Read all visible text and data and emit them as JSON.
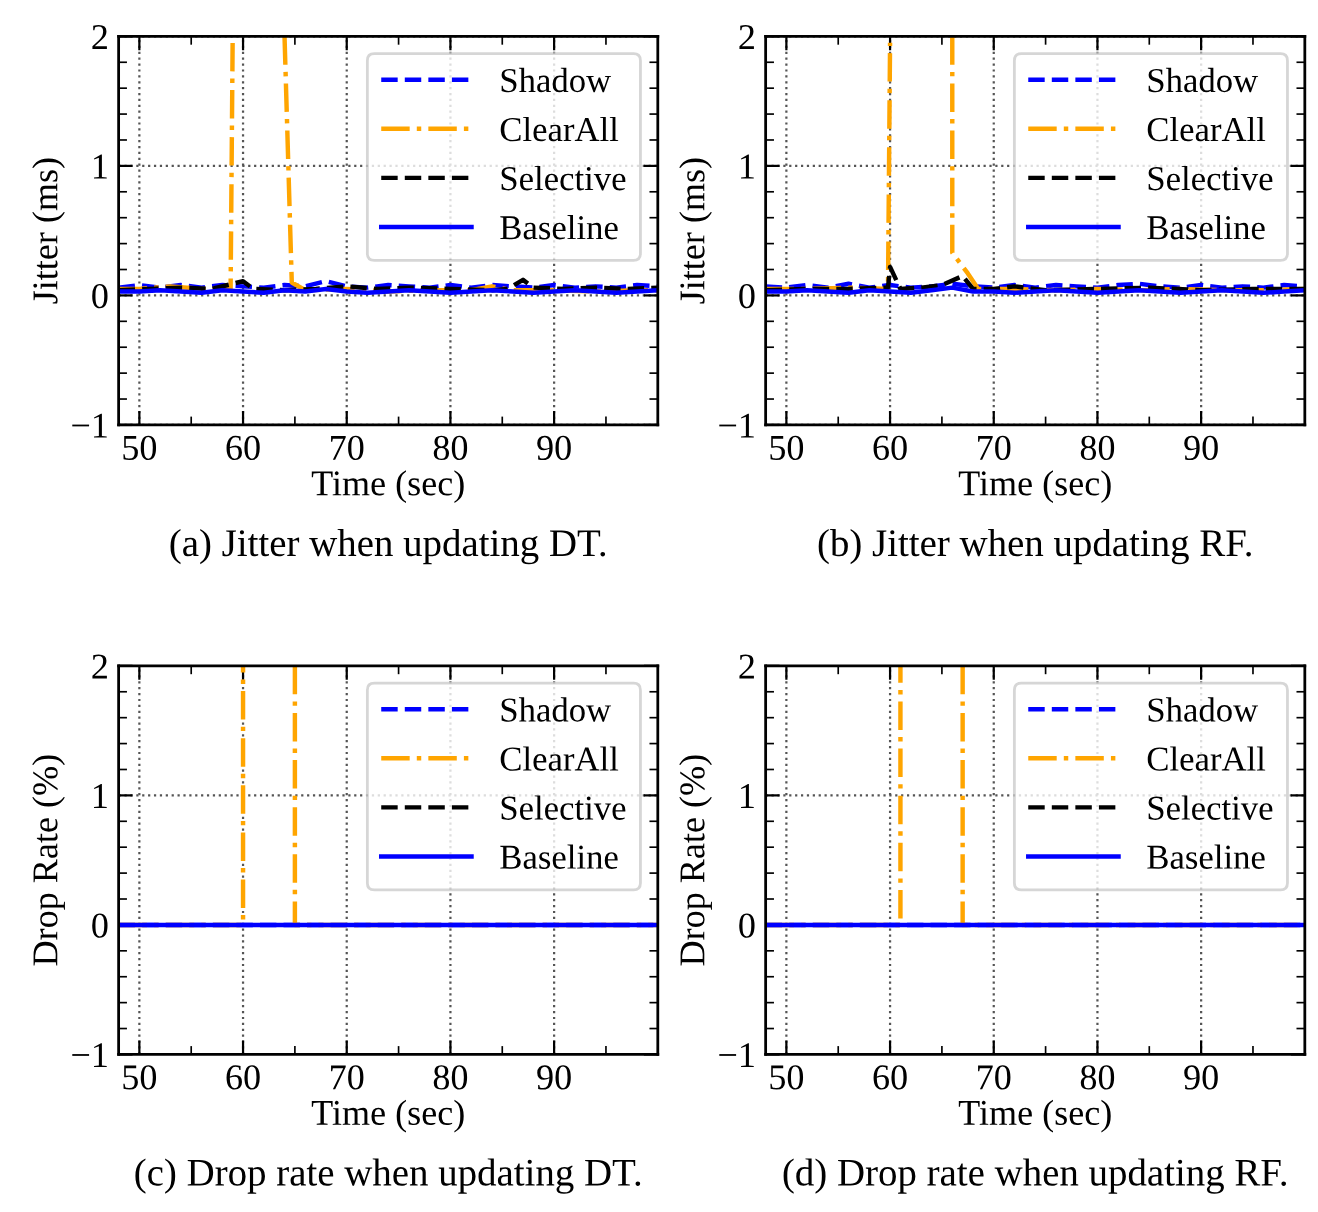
{
  "chart_data": [
    {
      "type": "line",
      "title": "(a) Jitter when updating DT.",
      "xlabel": "Time (sec)",
      "ylabel": "Jitter (ms)",
      "xlim": [
        48,
        100
      ],
      "ylim": [
        -1,
        2
      ],
      "xticks": [
        50,
        60,
        70,
        80,
        90
      ],
      "yticks": [
        -1,
        0,
        1,
        2
      ],
      "grid": true,
      "legend": "top right",
      "series": [
        {
          "name": "Shadow",
          "color": "#0000ff",
          "line_style": "dashed",
          "x": [
            48,
            50,
            52,
            54,
            56,
            58,
            60,
            62,
            64,
            66,
            68,
            70,
            72,
            74,
            76,
            78,
            80,
            82,
            84,
            86,
            88,
            90,
            92,
            94,
            96,
            98,
            100
          ],
          "values": [
            0.06,
            0.08,
            0.06,
            0.08,
            0.06,
            0.08,
            0.07,
            0.06,
            0.08,
            0.07,
            0.11,
            0.07,
            0.06,
            0.08,
            0.07,
            0.06,
            0.08,
            0.06,
            0.08,
            0.07,
            0.06,
            0.08,
            0.06,
            0.07,
            0.06,
            0.08,
            0.07
          ]
        },
        {
          "name": "ClearAll",
          "color": "#ffa500",
          "line_style": "dashdot",
          "x": [
            48,
            50,
            53,
            56,
            58.8,
            59,
            61.5,
            64,
            64.7,
            66,
            70,
            74,
            78,
            82,
            84,
            86,
            90,
            94,
            98,
            100
          ],
          "values": [
            0.05,
            0.05,
            0.07,
            0.05,
            0.05,
            2,
            null,
            2,
            0.1,
            0.04,
            0.05,
            0.03,
            0.04,
            0.04,
            0.07,
            0.04,
            0.04,
            0.03,
            0.04,
            0.04
          ]
        },
        {
          "name": "Selective",
          "color": "#000000",
          "line_style": "dashed",
          "x": [
            48,
            51,
            54,
            57,
            60,
            61,
            64,
            67,
            70,
            73,
            76,
            80,
            84,
            85.5,
            87,
            88,
            91,
            94,
            97,
            100
          ],
          "values": [
            0.04,
            0.05,
            0.06,
            0.05,
            0.11,
            0.05,
            0.04,
            0.05,
            0.07,
            0.05,
            0.06,
            0.05,
            0.04,
            0.05,
            0.12,
            0.06,
            0.05,
            0.06,
            0.05,
            0.06
          ]
        },
        {
          "name": "Baseline",
          "color": "#0000ff",
          "line_style": "solid",
          "x": [
            48,
            50,
            52,
            54,
            56,
            58,
            60,
            62,
            64,
            66,
            68,
            70,
            72,
            74,
            76,
            78,
            80,
            82,
            84,
            86,
            88,
            90,
            92,
            94,
            96,
            98,
            100
          ],
          "values": [
            0.03,
            0.03,
            0.04,
            0.03,
            0.02,
            0.04,
            0.03,
            0.02,
            0.04,
            0.03,
            0.05,
            0.03,
            0.02,
            0.03,
            0.04,
            0.03,
            0.02,
            0.03,
            0.04,
            0.03,
            0.02,
            0.03,
            0.04,
            0.03,
            0.02,
            0.03,
            0.04
          ]
        }
      ]
    },
    {
      "type": "line",
      "title": "(b) Jitter when updating RF.",
      "xlabel": "Time (sec)",
      "ylabel": "Jitter (ms)",
      "xlim": [
        48,
        100
      ],
      "ylim": [
        -1,
        2
      ],
      "xticks": [
        50,
        60,
        70,
        80,
        90
      ],
      "yticks": [
        -1,
        0,
        1,
        2
      ],
      "grid": true,
      "legend": "top right",
      "series": [
        {
          "name": "Shadow",
          "color": "#0000ff",
          "line_style": "dashed",
          "x": [
            48,
            50,
            52,
            54,
            56,
            58,
            60,
            62,
            64,
            66,
            68,
            70,
            72,
            74,
            76,
            78,
            80,
            82,
            84,
            86,
            88,
            90,
            92,
            94,
            96,
            98,
            100
          ],
          "values": [
            0.07,
            0.06,
            0.08,
            0.06,
            0.09,
            0.06,
            0.08,
            0.06,
            0.07,
            0.09,
            0.07,
            0.06,
            0.08,
            0.06,
            0.08,
            0.07,
            0.06,
            0.08,
            0.09,
            0.07,
            0.06,
            0.08,
            0.06,
            0.07,
            0.06,
            0.08,
            0.07
          ]
        },
        {
          "name": "ClearAll",
          "color": "#ffa500",
          "line_style": "dashdot",
          "x": [
            48,
            52,
            56,
            59.8,
            60,
            63,
            66,
            66,
            67.5,
            68.5,
            72,
            76,
            80,
            84,
            88,
            92,
            96,
            100
          ],
          "values": [
            0.05,
            0.05,
            0.06,
            0.05,
            1.95,
            null,
            2,
            0.33,
            0.17,
            0.05,
            0.05,
            0.04,
            0.05,
            0.04,
            0.05,
            0.04,
            0.04,
            0.05
          ]
        },
        {
          "name": "Selective",
          "color": "#000000",
          "line_style": "dashed",
          "x": [
            48,
            52,
            56,
            59.8,
            60,
            61,
            63,
            65,
            67,
            68,
            70,
            72,
            75,
            80,
            85,
            90,
            95,
            100
          ],
          "values": [
            0.04,
            0.05,
            0.05,
            0.06,
            0.22,
            0.05,
            0.06,
            0.08,
            0.15,
            0.05,
            0.05,
            0.07,
            0.04,
            0.05,
            0.06,
            0.04,
            0.05,
            0.05
          ]
        },
        {
          "name": "Baseline",
          "color": "#0000ff",
          "line_style": "solid",
          "x": [
            48,
            50,
            52,
            54,
            56,
            58,
            60,
            62,
            64,
            66,
            68,
            70,
            72,
            74,
            76,
            78,
            80,
            82,
            84,
            86,
            88,
            90,
            92,
            94,
            96,
            98,
            100
          ],
          "values": [
            0.03,
            0.03,
            0.04,
            0.03,
            0.02,
            0.04,
            0.03,
            0.02,
            0.04,
            0.06,
            0.03,
            0.03,
            0.02,
            0.03,
            0.04,
            0.03,
            0.02,
            0.03,
            0.04,
            0.03,
            0.02,
            0.03,
            0.04,
            0.03,
            0.02,
            0.03,
            0.04
          ]
        }
      ]
    },
    {
      "type": "line",
      "title": "(c) Drop rate when updating DT.",
      "xlabel": "Time (sec)",
      "ylabel": "Drop Rate (%)",
      "xlim": [
        48,
        100
      ],
      "ylim": [
        -1,
        2
      ],
      "xticks": [
        50,
        60,
        70,
        80,
        90
      ],
      "yticks": [
        -1,
        0,
        1,
        2
      ],
      "grid": true,
      "legend": "top right",
      "series": [
        {
          "name": "Shadow",
          "color": "#0000ff",
          "line_style": "dashed",
          "x": [
            48,
            100
          ],
          "values": [
            0,
            0
          ]
        },
        {
          "name": "ClearAll",
          "color": "#ffa500",
          "line_style": "dashdot",
          "x": [
            48,
            60,
            60,
            62.5,
            65,
            65,
            100
          ],
          "values": [
            0,
            0,
            2,
            null,
            2,
            0,
            0
          ]
        },
        {
          "name": "Selective",
          "color": "#000000",
          "line_style": "dashed"
        },
        {
          "name": "Baseline",
          "color": "#0000ff",
          "line_style": "solid",
          "x": [
            48,
            100
          ],
          "values": [
            0,
            0
          ]
        }
      ]
    },
    {
      "type": "line",
      "title": "(d) Drop rate when updating RF.",
      "xlabel": "Time (sec)",
      "ylabel": "Drop Rate (%)",
      "xlim": [
        48,
        100
      ],
      "ylim": [
        -1,
        2
      ],
      "xticks": [
        50,
        60,
        70,
        80,
        90
      ],
      "yticks": [
        -1,
        0,
        1,
        2
      ],
      "grid": true,
      "legend": "top right",
      "series": [
        {
          "name": "Shadow",
          "color": "#0000ff",
          "line_style": "dashed",
          "x": [
            48,
            100
          ],
          "values": [
            0,
            0
          ]
        },
        {
          "name": "ClearAll",
          "color": "#ffa500",
          "line_style": "dashdot",
          "x": [
            48,
            61,
            61,
            64,
            67,
            67,
            100
          ],
          "values": [
            0,
            0,
            2,
            null,
            2,
            0,
            0
          ]
        },
        {
          "name": "Selective",
          "color": "#000000",
          "line_style": "dashed"
        },
        {
          "name": "Baseline",
          "color": "#0000ff",
          "line_style": "solid",
          "x": [
            48,
            100
          ],
          "values": [
            0,
            0
          ]
        }
      ]
    }
  ]
}
